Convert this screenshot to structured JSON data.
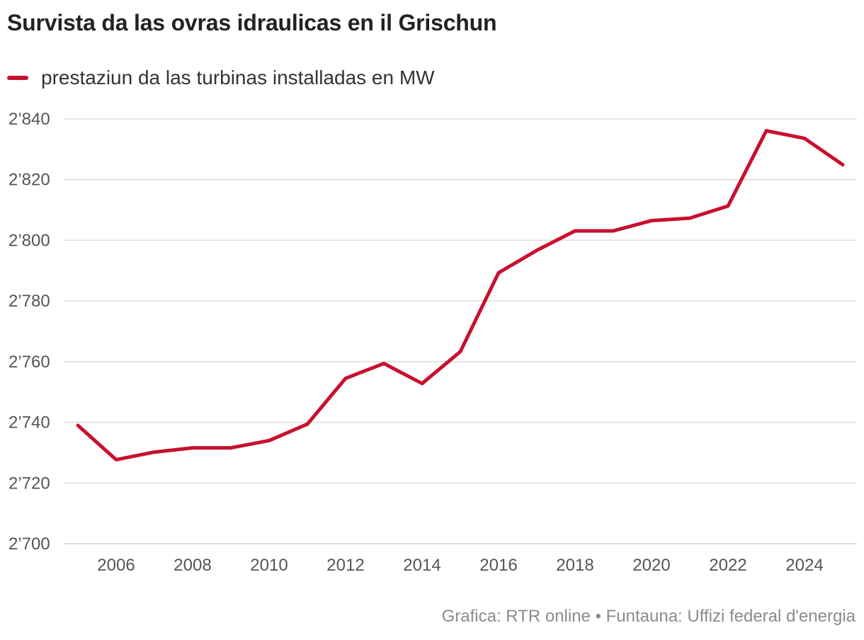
{
  "chart_data": {
    "type": "line",
    "title": "Survista da las ovras idraulicas en il Grischun",
    "series": [
      {
        "name": "prestaziun da las turbinas installadas en MW",
        "color": "#c8102e",
        "x": [
          2005,
          2006,
          2007,
          2008,
          2009,
          2010,
          2011,
          2012,
          2013,
          2014,
          2015,
          2016,
          2017,
          2018,
          2019,
          2020,
          2021,
          2022,
          2023,
          2024,
          2025
        ],
        "values": [
          2739,
          2727.7,
          2730.2,
          2731.6,
          2731.6,
          2734,
          2739.4,
          2754.5,
          2759.4,
          2752.8,
          2763.3,
          2789.3,
          2796.7,
          2803.1,
          2803.1,
          2806.5,
          2807.3,
          2811.3,
          2836.1,
          2833.6,
          2824.9
        ]
      }
    ],
    "ylim": [
      2700,
      2840
    ],
    "yticks": [
      2700,
      2720,
      2740,
      2760,
      2780,
      2800,
      2820,
      2840
    ],
    "ytick_labels": [
      "2’700",
      "2’720",
      "2’740",
      "2’760",
      "2’780",
      "2’800",
      "2’820",
      "2’840"
    ],
    "xlim": [
      2005,
      2025
    ],
    "xticks": [
      2006,
      2008,
      2010,
      2012,
      2014,
      2016,
      2018,
      2020,
      2022,
      2024
    ],
    "xtick_labels": [
      "2006",
      "2008",
      "2010",
      "2012",
      "2014",
      "2016",
      "2018",
      "2020",
      "2022",
      "2024"
    ],
    "xlabel": "",
    "ylabel": "",
    "grid": true,
    "legend_position": "top-left",
    "gridline_color": "#dddddd"
  },
  "footer": {
    "source": "Grafica: RTR online • Funtauna: Uffizi federal d'energia"
  }
}
